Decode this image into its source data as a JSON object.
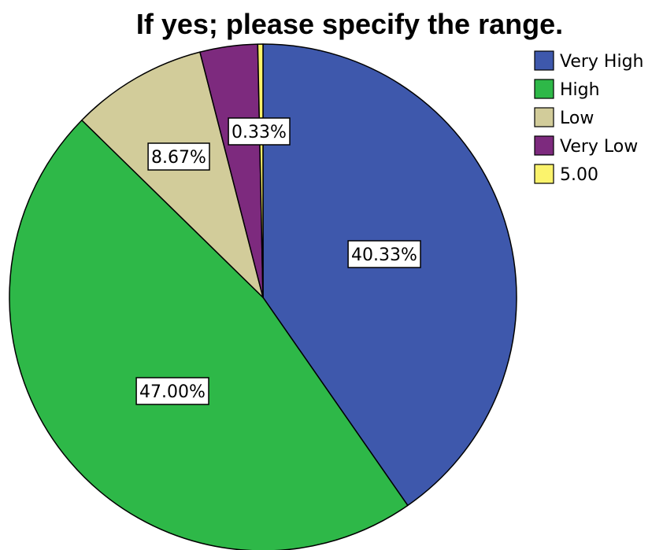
{
  "chart_data": {
    "type": "pie",
    "title": "If yes; please specify the range.",
    "slices": [
      {
        "label": "Very High",
        "value": 40.33,
        "display": "40.33%",
        "color": "#3e58ac"
      },
      {
        "label": "High",
        "value": 47.0,
        "display": "47.00%",
        "color": "#2eb848"
      },
      {
        "label": "Low",
        "value": 8.67,
        "display": "8.67%",
        "color": "#d2cc9a"
      },
      {
        "label": "Very Low",
        "value": 3.67,
        "display": "",
        "color": "#7d2a7e"
      },
      {
        "label": "5.00",
        "value": 0.33,
        "display": "0.33%",
        "color": "#fbf36c"
      }
    ],
    "legend_position": "top-right"
  }
}
